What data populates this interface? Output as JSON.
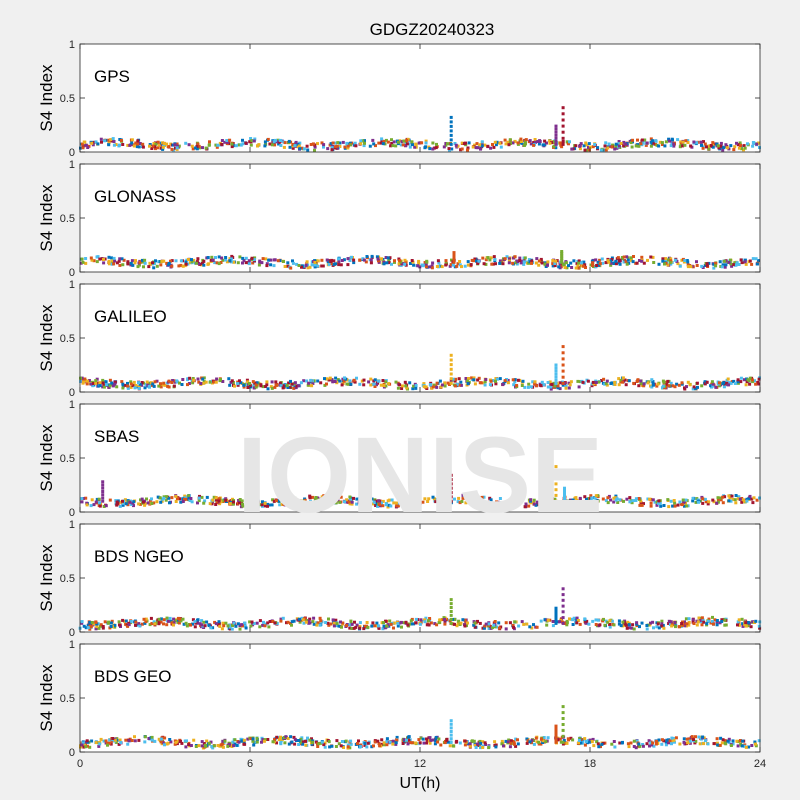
{
  "figure": {
    "title": "GDGZ20240323",
    "watermark": "IONISE",
    "xlabel": "UT(h)",
    "background": "#f0f0f0",
    "axes_background": "#ffffff",
    "watermark_color": "#e6e6e6"
  },
  "chart_data": [
    {
      "type": "scatter",
      "panel_label": "GPS",
      "ylabel": "S4 Index",
      "xlim": [
        0,
        24
      ],
      "ylim": [
        0,
        1
      ],
      "yticks": [
        {
          "v": 0,
          "label": "0"
        },
        {
          "v": 0.5,
          "label": "0.5"
        },
        {
          "v": 1,
          "label": "1"
        }
      ],
      "xticks": [],
      "base_level": 0.07,
      "spikes": [
        {
          "x": 13.1,
          "y": 0.32
        },
        {
          "x": 16.8,
          "y": 0.24
        },
        {
          "x": 17.05,
          "y": 0.41
        }
      ]
    },
    {
      "type": "scatter",
      "panel_label": "GLONASS",
      "ylabel": "S4 Index",
      "xlim": [
        0,
        24
      ],
      "ylim": [
        0,
        1
      ],
      "yticks": [
        {
          "v": 0,
          "label": "0"
        },
        {
          "v": 0.5,
          "label": "0.5"
        },
        {
          "v": 1,
          "label": "1"
        }
      ],
      "xticks": [],
      "base_level": 0.09,
      "spikes": [
        {
          "x": 13.2,
          "y": 0.18
        },
        {
          "x": 17.0,
          "y": 0.19
        }
      ]
    },
    {
      "type": "scatter",
      "panel_label": "GALILEO",
      "ylabel": "S4 Index",
      "xlim": [
        0,
        24
      ],
      "ylim": [
        0,
        1
      ],
      "yticks": [
        {
          "v": 0,
          "label": "0"
        },
        {
          "v": 0.5,
          "label": "0.5"
        },
        {
          "v": 1,
          "label": "1"
        }
      ],
      "xticks": [],
      "base_level": 0.08,
      "spikes": [
        {
          "x": 13.1,
          "y": 0.34
        },
        {
          "x": 16.8,
          "y": 0.25
        },
        {
          "x": 17.05,
          "y": 0.42
        }
      ]
    },
    {
      "type": "scatter",
      "panel_label": "SBAS",
      "ylabel": "S4 Index",
      "xlim": [
        0,
        24
      ],
      "ylim": [
        0,
        1
      ],
      "yticks": [
        {
          "v": 0,
          "label": "0"
        },
        {
          "v": 0.5,
          "label": "0.5"
        },
        {
          "v": 1,
          "label": "1"
        }
      ],
      "xticks": [],
      "base_level": 0.1,
      "spikes": [
        {
          "x": 0.8,
          "y": 0.28
        },
        {
          "x": 13.1,
          "y": 0.34
        },
        {
          "x": 16.8,
          "y": 0.42
        },
        {
          "x": 17.1,
          "y": 0.22
        }
      ]
    },
    {
      "type": "scatter",
      "panel_label": "BDS NGEO",
      "ylabel": "S4 Index",
      "xlim": [
        0,
        24
      ],
      "ylim": [
        0,
        1
      ],
      "yticks": [
        {
          "v": 0,
          "label": "0"
        },
        {
          "v": 0.5,
          "label": "0.5"
        },
        {
          "v": 1,
          "label": "1"
        }
      ],
      "xticks": [],
      "base_level": 0.08,
      "spikes": [
        {
          "x": 13.1,
          "y": 0.3
        },
        {
          "x": 16.8,
          "y": 0.22
        },
        {
          "x": 17.05,
          "y": 0.4
        }
      ]
    },
    {
      "type": "scatter",
      "panel_label": "BDS GEO",
      "ylabel": "S4 Index",
      "xlim": [
        0,
        24
      ],
      "ylim": [
        0,
        1
      ],
      "yticks": [
        {
          "v": 0,
          "label": "0"
        },
        {
          "v": 0.5,
          "label": "0.5"
        },
        {
          "v": 1,
          "label": "1"
        }
      ],
      "xticks": [
        {
          "v": 0,
          "label": "0"
        },
        {
          "v": 6,
          "label": "6"
        },
        {
          "v": 12,
          "label": "12"
        },
        {
          "v": 18,
          "label": "18"
        },
        {
          "v": 24,
          "label": "24"
        }
      ],
      "base_level": 0.09,
      "spikes": [
        {
          "x": 13.1,
          "y": 0.29
        },
        {
          "x": 16.8,
          "y": 0.24
        },
        {
          "x": 17.05,
          "y": 0.42
        }
      ]
    }
  ],
  "series_colors": [
    "#0072BD",
    "#D95319",
    "#EDB120",
    "#7E2F8E",
    "#77AC30",
    "#4DBEEE",
    "#A2142F"
  ]
}
